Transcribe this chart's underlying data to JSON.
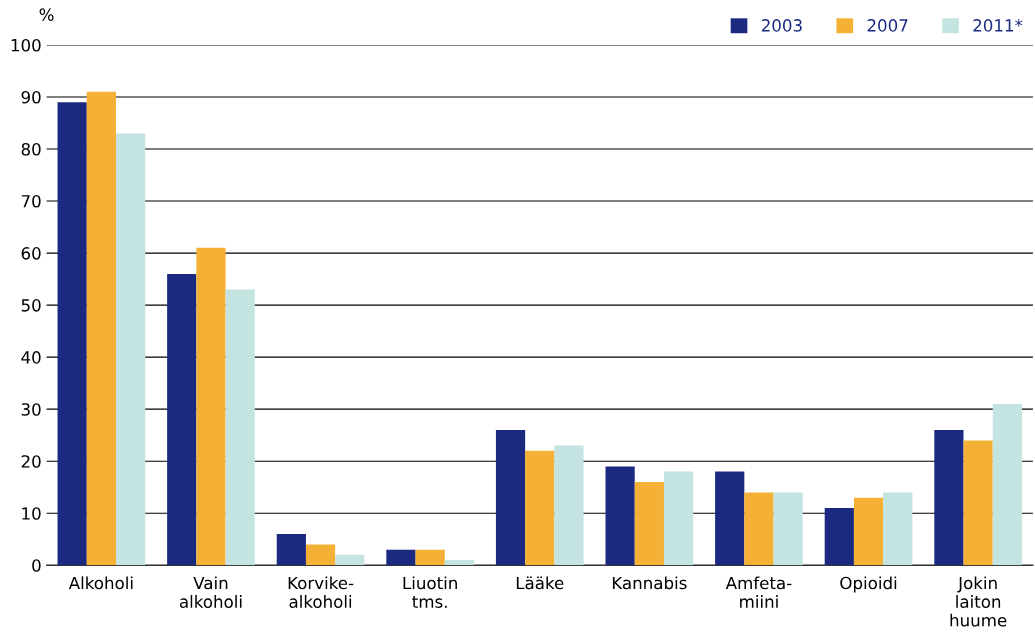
{
  "chart_data": {
    "type": "bar",
    "ylabel": "%",
    "categories": [
      "Alkoholi",
      "Vain\nalkoholi",
      "Korvike-\nalkoholi",
      "Liuotin\ntms.",
      "Lääke",
      "Kannabis",
      "Amfeta-\nmiini",
      "Opioidi",
      "Jokin\nlaiton\nhuume"
    ],
    "series": [
      {
        "name": "2003",
        "color": "#1b2a80",
        "values": [
          89,
          56,
          6,
          3,
          26,
          19,
          18,
          11,
          26
        ]
      },
      {
        "name": "2007",
        "color": "#f5b135",
        "values": [
          91,
          61,
          4,
          3,
          22,
          16,
          14,
          13,
          24
        ]
      },
      {
        "name": "2011*",
        "color": "#c3e4e0",
        "values": [
          83,
          53,
          2,
          1,
          23,
          18,
          14,
          14,
          31
        ]
      }
    ],
    "ylim": [
      0,
      100
    ],
    "yticks": [
      0,
      10,
      20,
      30,
      40,
      50,
      60,
      70,
      80,
      90,
      100
    ],
    "grid": "y",
    "legend": "top right"
  }
}
